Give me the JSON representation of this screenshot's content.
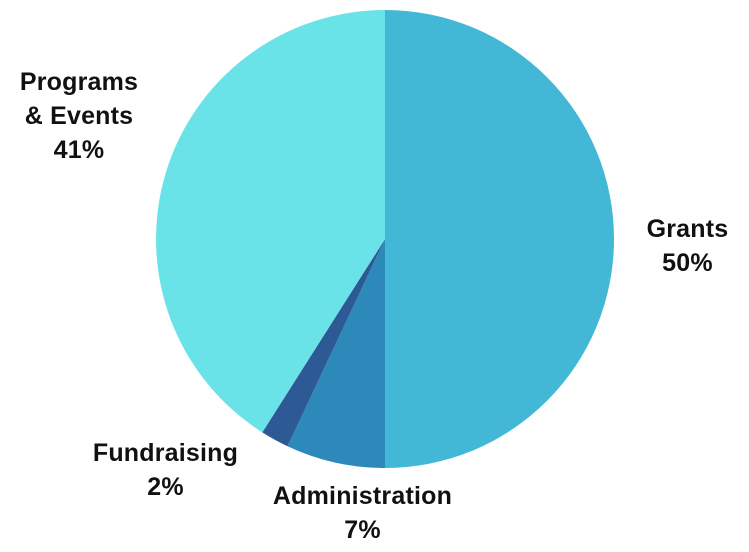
{
  "chart_data": {
    "type": "pie",
    "slices": [
      {
        "label": "Grants",
        "value": 50,
        "percent_label": "50%",
        "color": "#42b8d6"
      },
      {
        "label": "Administration",
        "value": 7,
        "percent_label": "7%",
        "color": "#2d89b9"
      },
      {
        "label": "Fundraising",
        "value": 2,
        "percent_label": "2%",
        "color": "#2d5a95"
      },
      {
        "label": "Programs & Events",
        "value": 41,
        "percent_label": "41%",
        "color": "#6ae3e8"
      }
    ],
    "title": "",
    "legend": "none"
  },
  "labels": {
    "grants": {
      "name": "Grants",
      "pct": "50%"
    },
    "administration": {
      "name": "Administration",
      "pct": "7%"
    },
    "fundraising": {
      "name": "Fundraising",
      "pct": "2%"
    },
    "programs": {
      "name_line1": "Programs",
      "name_line2": "& Events",
      "pct": "41%"
    }
  }
}
